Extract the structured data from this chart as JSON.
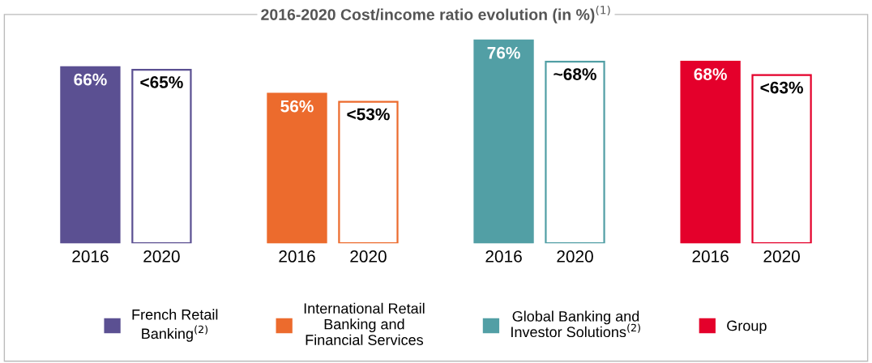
{
  "chart_data": {
    "type": "bar",
    "title": "2016-2020 Cost/income ratio evolution (in %)$^{(1)}$",
    "categories": [
      "2016",
      "2020",
      "2016",
      "2020",
      "2016",
      "2020",
      "2016",
      "2020"
    ],
    "legend": "bottom",
    "series": [
      {
        "name": "French Retail\nBanking$^{(2)}$",
        "color": "#5b5092",
        "values": [
          66,
          65,
          null,
          null,
          null,
          null,
          null,
          null
        ],
        "value_labels": [
          "66%",
          "<65%",
          null,
          null,
          null,
          null,
          null,
          null
        ]
      },
      {
        "name": "International Retail\nBanking and\nFinancial Services",
        "color": "#ec6b2d",
        "values": [
          null,
          null,
          56,
          53,
          null,
          null,
          null,
          null
        ],
        "value_labels": [
          null,
          null,
          "56%",
          "<53%",
          null,
          null,
          null,
          null
        ]
      },
      {
        "name": "Global Banking and\nInvestor Solutions$^{(2)}$",
        "color": "#529fa5",
        "values": [
          null,
          null,
          null,
          null,
          76,
          68,
          null,
          null
        ],
        "value_labels": [
          null,
          null,
          null,
          null,
          "76%",
          "~68%",
          null,
          null
        ]
      },
      {
        "name": "Group",
        "color": "#e4002b",
        "values": [
          null,
          null,
          null,
          null,
          null,
          null,
          68,
          63
        ],
        "value_labels": [
          null,
          null,
          null,
          null,
          null,
          null,
          "68%",
          "<63%"
        ]
      }
    ]
  }
}
